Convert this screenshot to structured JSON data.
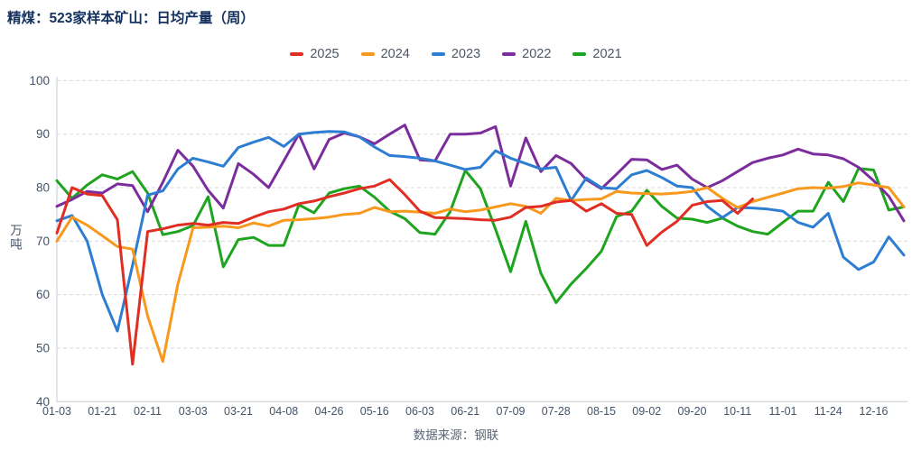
{
  "title": "精煤：523家样本矿山：日均产量（周）",
  "source": "数据来源：钢联",
  "y_axis": {
    "unit": "万吨",
    "min": 40,
    "max": 100,
    "ticks": [
      40,
      50,
      60,
      70,
      80,
      90,
      100
    ]
  },
  "colors": {
    "title": "#15325f",
    "axis_text": "#44546a",
    "gridline": "#d8d8d8",
    "axis_line": "#c6ccd4",
    "red_2025": "#e02e24",
    "orange_2024": "#f8981d",
    "blue_2023": "#2d7dd2",
    "purple_2022": "#7c2d9c",
    "green_2021": "#1fa41f"
  },
  "chart_data": {
    "type": "line",
    "title": "精煤：523家样本矿山：日均产量（周）",
    "ylabel": "万吨",
    "ylim": [
      40,
      100
    ],
    "grid": "horizontal-dashed",
    "legend_position": "top-center",
    "x_tick_labels": [
      "01-03",
      "01-21",
      "02-11",
      "03-03",
      "03-21",
      "04-08",
      "04-26",
      "05-16",
      "06-03",
      "06-21",
      "07-09",
      "07-28",
      "08-15",
      "09-02",
      "09-20",
      "10-11",
      "11-01",
      "11-24",
      "12-16"
    ],
    "points_per_tick": 3,
    "series": [
      {
        "name": "2025",
        "color": "#e02e24",
        "values": [
          71.5,
          80,
          78.8,
          78.5,
          74,
          47,
          71.8,
          72.3,
          73,
          73.3,
          73,
          73.5,
          73.3,
          74.5,
          75.5,
          76,
          77,
          77.5,
          78.3,
          79,
          79.8,
          80.3,
          81.5,
          78.7,
          75.6,
          74.4,
          74.3,
          74.2,
          74,
          73.9,
          74.5,
          76.3,
          76.5,
          77.3,
          77.6,
          75.6,
          77,
          75.2,
          75,
          69.2,
          71.7,
          73.7,
          76.7,
          77.4,
          77.6,
          75.2,
          77.9
        ]
      },
      {
        "name": "2024",
        "color": "#f8981d",
        "values": [
          70,
          74.5,
          73,
          71,
          69,
          68.5,
          56,
          47.5,
          62,
          72.5,
          72.6,
          72.8,
          72.5,
          73.4,
          72.8,
          73.9,
          74,
          74.2,
          74.5,
          75,
          75.2,
          76.3,
          75.5,
          75.6,
          75.4,
          75.2,
          76,
          75.5,
          75.8,
          76.4,
          77,
          76.5,
          75.2,
          78,
          77.6,
          77.8,
          77.9,
          79.3,
          79,
          78.9,
          78.8,
          79,
          79.3,
          80,
          78,
          76.3,
          77.4,
          78.2,
          79,
          79.8,
          80,
          79.9,
          80.2,
          80.9,
          80.5,
          80,
          76.4
        ]
      },
      {
        "name": "2023",
        "color": "#2d7dd2",
        "values": [
          73.8,
          74.8,
          70,
          60,
          53.2,
          65.5,
          78.6,
          79.4,
          83.5,
          85.5,
          84.8,
          84,
          87.5,
          88.5,
          89.4,
          87.7,
          90,
          90.3,
          90.5,
          90.4,
          89.5,
          87.6,
          86,
          85.8,
          85.5,
          85,
          84.2,
          83.4,
          83.8,
          86.9,
          85.5,
          84.5,
          83.5,
          83.8,
          77.6,
          81.8,
          80,
          79.8,
          82.4,
          83.2,
          81.9,
          80.3,
          80,
          76.5,
          74.4,
          76.3,
          76.2,
          76,
          75.6,
          73.5,
          72.6,
          75.2,
          67,
          64.7,
          66.1,
          70.8,
          67.4
        ]
      },
      {
        "name": "2022",
        "color": "#7c2d9c",
        "values": [
          76.5,
          77.8,
          79.3,
          79,
          80.7,
          80.4,
          75.5,
          81,
          87,
          84,
          79.5,
          76.2,
          84.5,
          82.5,
          80,
          85,
          90,
          83.5,
          89,
          90.2,
          89.5,
          88.2,
          90,
          91.7,
          85.2,
          85,
          90,
          90,
          90.2,
          91.4,
          80.3,
          89.3,
          83,
          86,
          84.5,
          81.5,
          79.8,
          82.5,
          85.3,
          85.2,
          83.4,
          84.2,
          81.6,
          80,
          81.3,
          83,
          84.7,
          85.5,
          86.1,
          87.2,
          86.3,
          86.1,
          85.4,
          83.8,
          81.3,
          78.4,
          73.8
        ]
      },
      {
        "name": "2021",
        "color": "#1fa41f",
        "values": [
          81.3,
          78,
          80.5,
          82.4,
          81.6,
          83,
          79,
          71.2,
          71.8,
          72.9,
          78.3,
          65.2,
          70.3,
          70.7,
          69.2,
          69.2,
          76.8,
          75.3,
          79,
          79.8,
          80.3,
          78.2,
          75.6,
          74.2,
          71.6,
          71.3,
          75.5,
          83.2,
          79.8,
          72.2,
          64.3,
          73.7,
          64,
          58.5,
          62,
          64.9,
          68.1,
          74.6,
          75.6,
          79.5,
          76.5,
          74.3,
          74.1,
          73.5,
          74.3,
          72.8,
          71.8,
          71.3,
          73.5,
          75.6,
          75.6,
          81,
          77.4,
          83.6,
          83.3,
          75.8,
          76.4
        ]
      }
    ]
  }
}
